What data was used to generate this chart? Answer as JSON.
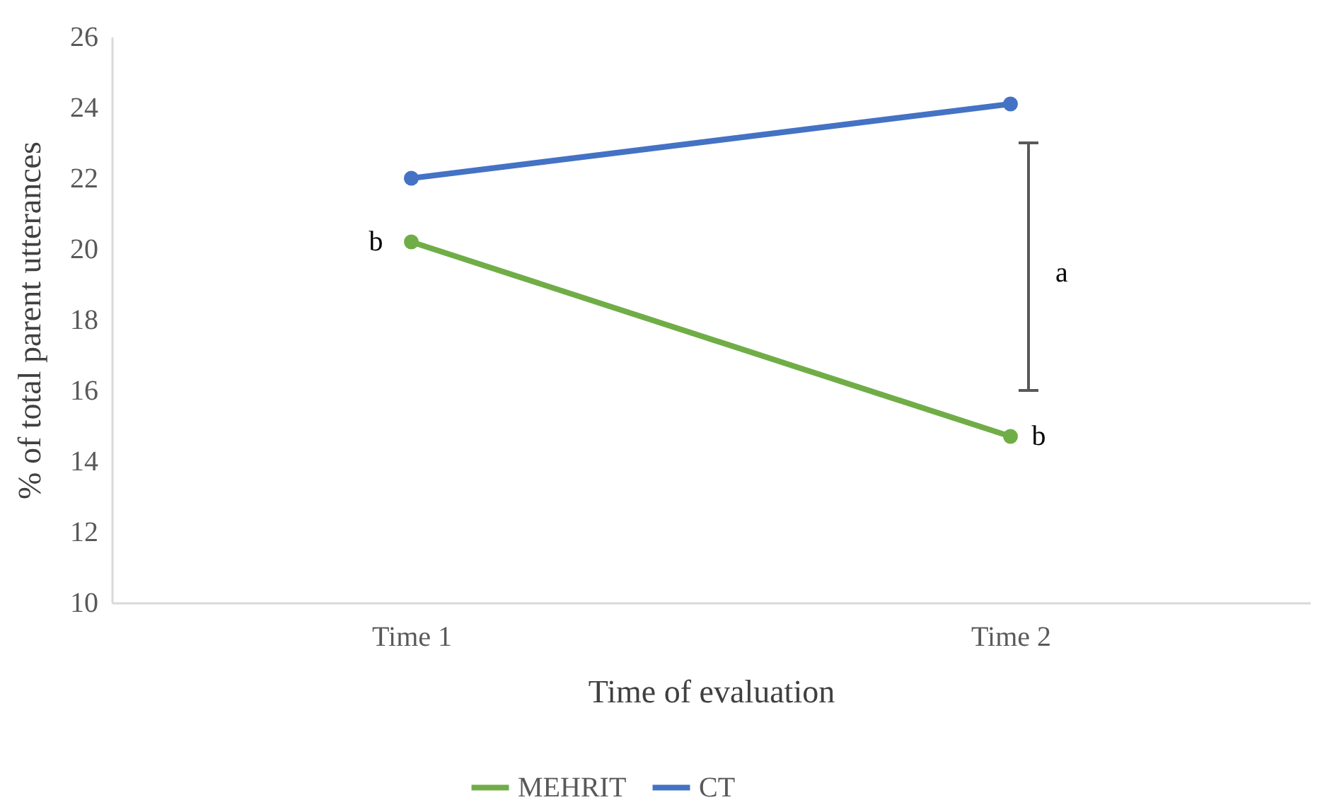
{
  "chart_data": {
    "type": "line",
    "xlabel": "Time of evaluation",
    "ylabel": "% of total parent utterances",
    "categories": [
      "Time 1",
      "Time 2"
    ],
    "series": [
      {
        "name": "MEHRIT",
        "color": "#70ad47",
        "values": [
          20.2,
          14.7
        ]
      },
      {
        "name": "CT",
        "color": "#4472c4",
        "values": [
          22.0,
          24.1
        ]
      }
    ],
    "ylim": [
      10,
      26
    ],
    "yticks": [
      10,
      12,
      14,
      16,
      18,
      20,
      22,
      24,
      26
    ],
    "grid": false,
    "legend": "bottom",
    "marker": "circle",
    "line_style": "solid",
    "annotations": [
      {
        "text": "b",
        "x": "Time 1",
        "y": 20.2
      },
      "a",
      {
        "text": "b",
        "x": "Time 2",
        "y": 14.7
      }
    ]
  }
}
